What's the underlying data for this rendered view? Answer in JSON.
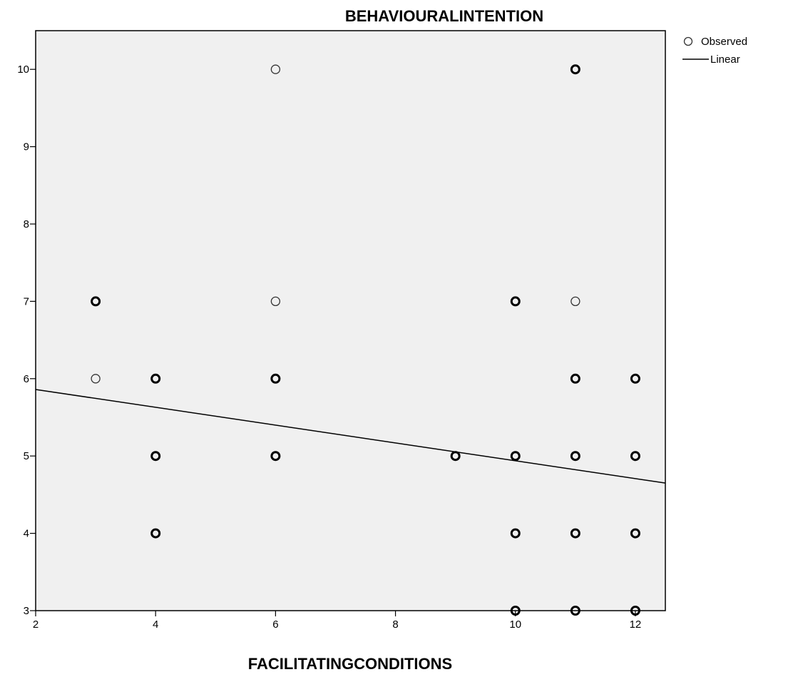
{
  "chart_data": {
    "type": "scatter",
    "title": "BEHAVIOURALINTENTION",
    "xlabel": "FACILITATINGCONDITIONS",
    "ylabel": "",
    "xlim": [
      2,
      12.5
    ],
    "ylim": [
      3,
      10.5
    ],
    "xticks": [
      2,
      4,
      6,
      8,
      10,
      12
    ],
    "yticks": [
      3,
      4,
      5,
      6,
      7,
      8,
      9,
      10
    ],
    "grid": false,
    "legend_position": "top-right",
    "legend": [
      {
        "label": "Observed",
        "kind": "circle"
      },
      {
        "label": "Linear",
        "kind": "line"
      }
    ],
    "observed": [
      {
        "x": 3,
        "y": 7,
        "multiple": true
      },
      {
        "x": 3,
        "y": 6,
        "multiple": false
      },
      {
        "x": 4,
        "y": 6,
        "multiple": true
      },
      {
        "x": 4,
        "y": 5,
        "multiple": true
      },
      {
        "x": 4,
        "y": 4,
        "multiple": true
      },
      {
        "x": 6,
        "y": 10,
        "multiple": false
      },
      {
        "x": 6,
        "y": 7,
        "multiple": false
      },
      {
        "x": 6,
        "y": 6,
        "multiple": true
      },
      {
        "x": 6,
        "y": 5,
        "multiple": true
      },
      {
        "x": 9,
        "y": 5,
        "multiple": true
      },
      {
        "x": 10,
        "y": 7,
        "multiple": true
      },
      {
        "x": 10,
        "y": 5,
        "multiple": true
      },
      {
        "x": 10,
        "y": 4,
        "multiple": true
      },
      {
        "x": 10,
        "y": 3,
        "multiple": true
      },
      {
        "x": 11,
        "y": 10,
        "multiple": true
      },
      {
        "x": 11,
        "y": 7,
        "multiple": false
      },
      {
        "x": 11,
        "y": 6,
        "multiple": true
      },
      {
        "x": 11,
        "y": 5,
        "multiple": true
      },
      {
        "x": 11,
        "y": 4,
        "multiple": true
      },
      {
        "x": 11,
        "y": 3,
        "multiple": true
      },
      {
        "x": 12,
        "y": 6,
        "multiple": true
      },
      {
        "x": 12,
        "y": 5,
        "multiple": true
      },
      {
        "x": 12,
        "y": 4,
        "multiple": true
      },
      {
        "x": 12,
        "y": 3,
        "multiple": true
      }
    ],
    "linear_fit": [
      {
        "x": 2,
        "y": 5.86
      },
      {
        "x": 12.5,
        "y": 4.65
      }
    ]
  }
}
